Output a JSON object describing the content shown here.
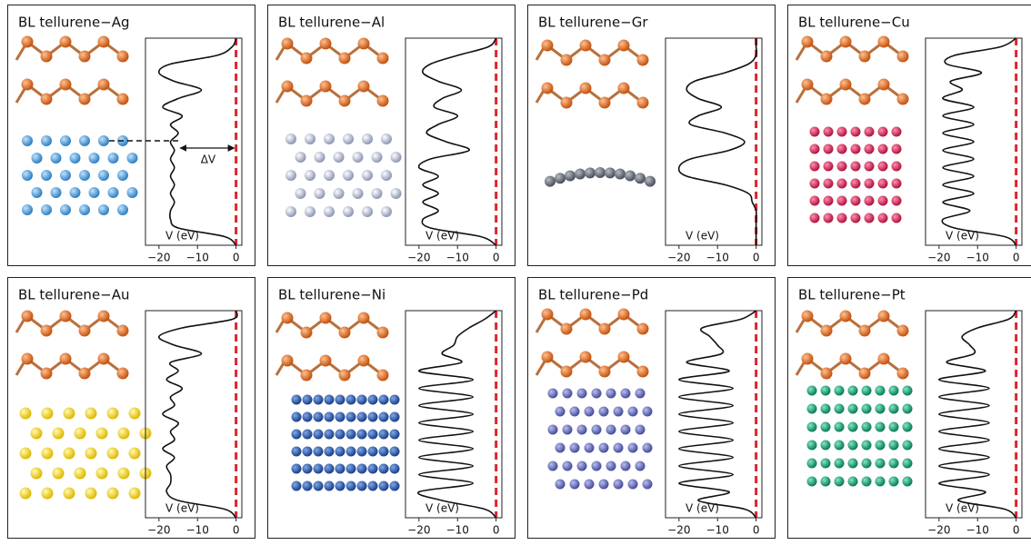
{
  "chart_data": [
    {
      "type": "line",
      "title": "BL tellurene−Ag",
      "xlabel": "V (eV)",
      "annotation": "ΔV",
      "color": "#111111",
      "vline": 0,
      "vline_color": "#d9262c",
      "xlim": [
        -23.5,
        1.5
      ],
      "xticks": [
        {
          "value": -20,
          "label": "−20"
        },
        {
          "value": -10,
          "label": "−10"
        },
        0
      ],
      "categories": [
        null,
        null,
        null,
        null,
        null,
        null,
        null,
        null,
        null,
        null,
        null,
        null,
        null,
        null,
        null,
        null,
        null,
        null,
        null,
        null,
        null,
        null,
        null,
        null,
        null
      ],
      "values": [
        0,
        -1,
        -5,
        -17,
        -20,
        -16,
        -9,
        -15,
        -19,
        -14,
        -17,
        -15,
        -17,
        -16,
        -17,
        -16,
        -17,
        -16,
        -17,
        -16,
        -17,
        -17,
        -15,
        -3,
        0
      ]
    },
    {
      "type": "line",
      "title": "BL tellurene−Al",
      "xlabel": "V (eV)",
      "color": "#111111",
      "vline": 0,
      "vline_color": "#d9262c",
      "xlim": [
        -23.5,
        1.5
      ],
      "xticks": [
        {
          "value": -20,
          "label": "−20"
        },
        {
          "value": -10,
          "label": "−10"
        },
        0
      ],
      "categories": [
        null,
        null,
        null,
        null,
        null,
        null,
        null,
        null,
        null,
        null,
        null,
        null,
        null,
        null,
        null,
        null,
        null,
        null,
        null,
        null,
        null,
        null,
        null,
        null,
        null
      ],
      "values": [
        0,
        -2,
        -10,
        -17,
        -19,
        -15,
        -9,
        -14,
        -16,
        -10,
        -15,
        -18,
        -13,
        -7,
        -17,
        -20,
        -15,
        -19,
        -15,
        -19,
        -15,
        -19,
        -17,
        -4,
        0
      ]
    },
    {
      "type": "line",
      "title": "BL tellurene−Gr",
      "xlabel": "V (eV)",
      "color": "#111111",
      "vline": 0,
      "vline_color": "#d9262c",
      "xlim": [
        -23.5,
        1.5
      ],
      "xticks": [
        {
          "value": -20,
          "label": "−20"
        },
        {
          "value": -10,
          "label": "−10"
        },
        0
      ],
      "categories": [
        null,
        null,
        null,
        null,
        null,
        null,
        null,
        null,
        null,
        null,
        null,
        null,
        null,
        null,
        null,
        null,
        null,
        null,
        null,
        null,
        null,
        null,
        null,
        null,
        null
      ],
      "values": [
        0,
        0,
        0,
        -2,
        -8,
        -16,
        -18,
        -15,
        -9,
        -15,
        -17,
        -8,
        -3,
        -7,
        -17,
        -20,
        -18,
        -8,
        -2,
        -1,
        0,
        0,
        0,
        0,
        0
      ]
    },
    {
      "type": "line",
      "title": "BL tellurene−Cu",
      "xlabel": "V (eV)",
      "color": "#111111",
      "vline": 0,
      "vline_color": "#d9262c",
      "xlim": [
        -23.5,
        1.5
      ],
      "xticks": [
        {
          "value": -20,
          "label": "−20"
        },
        {
          "value": -10,
          "label": "−10"
        },
        0
      ],
      "categories": [
        null,
        null,
        null,
        null,
        null,
        null,
        null,
        null,
        null,
        null,
        null,
        null,
        null,
        null,
        null,
        null,
        null,
        null,
        null,
        null,
        null,
        null,
        null,
        null,
        null
      ],
      "values": [
        0,
        -4,
        -16,
        -18,
        -9,
        -17,
        -14,
        -19,
        -11,
        -19,
        -11,
        -19,
        -11,
        -19,
        -11,
        -19,
        -11,
        -19,
        -11,
        -19,
        -12,
        -19,
        -16,
        -3,
        0
      ]
    },
    {
      "type": "line",
      "title": "BL tellurene−Au",
      "xlabel": "V (eV)",
      "color": "#111111",
      "vline": 0,
      "vline_color": "#d9262c",
      "xlim": [
        -23.5,
        1.5
      ],
      "xticks": [
        {
          "value": -20,
          "label": "−20"
        },
        {
          "value": -10,
          "label": "−10"
        },
        0
      ],
      "categories": [
        null,
        null,
        null,
        null,
        null,
        null,
        null,
        null,
        null,
        null,
        null,
        null,
        null,
        null,
        null,
        null,
        null,
        null,
        null,
        null,
        null,
        null,
        null,
        null,
        null
      ],
      "values": [
        0,
        -1,
        -14,
        -20,
        -16,
        -9,
        -17,
        -15,
        -18,
        -14,
        -17,
        -16,
        -19,
        -15,
        -17,
        -16,
        -19,
        -16,
        -18,
        -17,
        -17,
        -18,
        -15,
        -3,
        0
      ]
    },
    {
      "type": "line",
      "title": "BL tellurene−Ni",
      "xlabel": "V (eV)",
      "color": "#111111",
      "vline": 0,
      "vline_color": "#d9262c",
      "xlim": [
        -23.5,
        1.5
      ],
      "xticks": [
        {
          "value": -20,
          "label": "−20"
        },
        {
          "value": -10,
          "label": "−10"
        },
        0
      ],
      "categories": [
        null,
        null,
        null,
        null,
        null,
        null,
        null,
        null,
        null,
        null,
        null,
        null,
        null,
        null,
        null,
        null,
        null,
        null,
        null,
        null,
        null,
        null,
        null,
        null,
        null
      ],
      "values": [
        0,
        -3,
        -7,
        -10,
        -11,
        -14,
        -9,
        -20,
        -6,
        -20,
        -6,
        -20,
        -6,
        -20,
        -6,
        -20,
        -6,
        -20,
        -6,
        -20,
        -6,
        -20,
        -14,
        -3,
        0
      ]
    },
    {
      "type": "line",
      "title": "BL tellurene−Pd",
      "xlabel": "V (eV)",
      "color": "#111111",
      "vline": 0,
      "vline_color": "#d9262c",
      "xlim": [
        -23.5,
        1.5
      ],
      "xticks": [
        {
          "value": -20,
          "label": "−20"
        },
        {
          "value": -10,
          "label": "−10"
        },
        0
      ],
      "categories": [
        null,
        null,
        null,
        null,
        null,
        null,
        null,
        null,
        null,
        null,
        null,
        null,
        null,
        null,
        null,
        null,
        null,
        null,
        null,
        null,
        null,
        null,
        null,
        null,
        null
      ],
      "values": [
        0,
        -4,
        -14,
        -12,
        -10,
        -9,
        -18,
        -7,
        -20,
        -6,
        -20,
        -6,
        -20,
        -6,
        -20,
        -6,
        -20,
        -6,
        -20,
        -6,
        -20,
        -7,
        -15,
        -3,
        0
      ]
    },
    {
      "type": "line",
      "title": "BL tellurene−Pt",
      "xlabel": "V (eV)",
      "color": "#111111",
      "vline": 0,
      "vline_color": "#d9262c",
      "xlim": [
        -23.5,
        1.5
      ],
      "xticks": [
        {
          "value": -20,
          "label": "−20"
        },
        {
          "value": -10,
          "label": "−10"
        },
        0
      ],
      "categories": [
        null,
        null,
        null,
        null,
        null,
        null,
        null,
        null,
        null,
        null,
        null,
        null,
        null,
        null,
        null,
        null,
        null,
        null,
        null,
        null,
        null,
        null,
        null,
        null,
        null
      ],
      "values": [
        0,
        -2,
        -10,
        -14,
        -12,
        -11,
        -18,
        -8,
        -20,
        -7,
        -20,
        -7,
        -20,
        -7,
        -20,
        -7,
        -20,
        -7,
        -20,
        -7,
        -20,
        -8,
        -15,
        -3,
        0
      ]
    }
  ]
}
